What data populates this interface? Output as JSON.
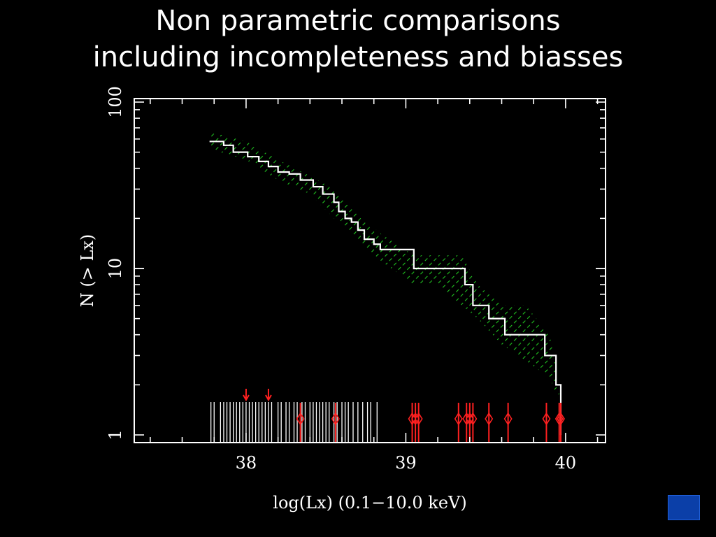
{
  "slide": {
    "title_line1": "Non parametric comparisons",
    "title_line2": "including incompleteness and biasses"
  },
  "chart_data": {
    "type": "line",
    "xlabel": "log(Lx)  (0.1−10.0 keV)",
    "ylabel": "N (> Lx)",
    "xlim": [
      37.3,
      40.25
    ],
    "ylim": [
      1,
      100
    ],
    "yscale": "log",
    "x_ticks": [
      "38",
      "39",
      "40"
    ],
    "y_ticks": [
      "1",
      "10",
      "100"
    ],
    "grid": false,
    "series": [
      {
        "color": "#ffffff",
        "style": "step",
        "x": [
          37.78,
          37.86,
          37.92,
          38.01,
          38.08,
          38.14,
          38.2,
          38.27,
          38.34,
          38.42,
          38.48,
          38.55,
          38.58,
          38.62,
          38.66,
          38.7,
          38.74,
          38.8,
          38.84,
          38.97,
          39.05,
          39.3,
          39.37,
          39.42,
          39.52,
          39.62,
          39.87,
          39.94,
          39.97
        ],
        "y": [
          58,
          55,
          50,
          47,
          44,
          41,
          38,
          37,
          34,
          31,
          28,
          25,
          22,
          20,
          19,
          17,
          15,
          14,
          13,
          13,
          10,
          10,
          8,
          6,
          5,
          4,
          3,
          2,
          1
        ]
      }
    ],
    "confidence_band": {
      "color": "#22cc22",
      "x": [
        37.78,
        38.0,
        38.2,
        38.4,
        38.55,
        38.7,
        38.85,
        39.05,
        39.2,
        39.35,
        39.45,
        39.6,
        39.75,
        39.9,
        39.96
      ],
      "upper": [
        66,
        58,
        45,
        36,
        30,
        21,
        16,
        12,
        12,
        12,
        8,
        6,
        6,
        4,
        2
      ],
      "lower": [
        52,
        45,
        34,
        28,
        20,
        15,
        11,
        8,
        8,
        6,
        5,
        3.5,
        2.8,
        2.2,
        1.6
      ]
    },
    "detections_x": [
      37.78,
      37.8,
      37.84,
      37.86,
      37.88,
      37.9,
      37.92,
      37.94,
      37.96,
      37.98,
      38.0,
      38.02,
      38.04,
      38.06,
      38.08,
      38.1,
      38.12,
      38.14,
      38.16,
      38.2,
      38.22,
      38.25,
      38.27,
      38.3,
      38.32,
      38.35,
      38.37,
      38.4,
      38.42,
      38.44,
      38.46,
      38.48,
      38.5,
      38.52,
      38.55,
      38.57,
      38.6,
      38.62,
      38.64,
      38.67,
      38.7,
      38.73,
      38.76,
      38.78,
      38.82
    ],
    "upper_limits": {
      "color": "#ff2020",
      "x": [
        38.34,
        38.56,
        39.04,
        39.06,
        39.08,
        39.33,
        39.38,
        39.4,
        39.42,
        39.52,
        39.64,
        39.88,
        39.96,
        39.97
      ],
      "arrow_x": [
        38.0,
        38.14
      ]
    }
  }
}
